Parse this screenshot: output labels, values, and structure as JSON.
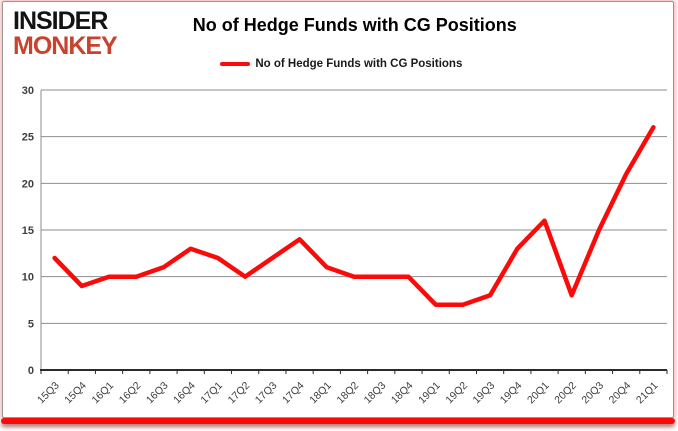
{
  "logo": {
    "line1": "INSIDER",
    "line2": "MONKEY"
  },
  "header": {
    "title": "No of Hedge Funds with CG Positions"
  },
  "legend": {
    "label": "No of Hedge Funds with CG Positions"
  },
  "colors": {
    "line": "#fb0a0a",
    "logo_red": "#c8422e",
    "grid": "#8e8e8e",
    "axis": "#2b2b2b",
    "axis_text": "#3f3f3f"
  },
  "chart_data": {
    "type": "line",
    "title": "No of Hedge Funds with CG Positions",
    "categories": [
      "15Q3",
      "15Q4",
      "16Q1",
      "16Q2",
      "16Q3",
      "16Q4",
      "17Q1",
      "17Q2",
      "17Q3",
      "17Q4",
      "18Q1",
      "18Q2",
      "18Q3",
      "18Q4",
      "19Q1",
      "19Q2",
      "19Q3",
      "19Q4",
      "20Q1",
      "20Q2",
      "20Q3",
      "20Q4",
      "21Q1"
    ],
    "series": [
      {
        "name": "No of Hedge Funds with CG Positions",
        "color": "#fb0a0a",
        "values": [
          12,
          9,
          10,
          10,
          11,
          13,
          12,
          10,
          12,
          14,
          11,
          10,
          10,
          10,
          7,
          7,
          8,
          13,
          16,
          8,
          15,
          21,
          26
        ]
      }
    ],
    "xlabel": "",
    "ylabel": "",
    "ylim": [
      0,
      30
    ],
    "yticks": [
      0,
      5,
      10,
      15,
      20,
      25,
      30
    ],
    "grid": true,
    "legend_position": "top-center",
    "x_tick_rotation_deg": -45
  }
}
